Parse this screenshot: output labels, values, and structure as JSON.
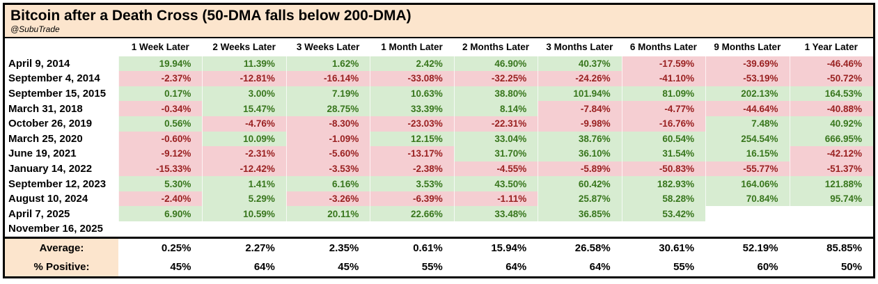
{
  "header": {
    "title": "Bitcoin after a Death Cross (50-DMA falls below 200-DMA)",
    "subtitle": "@SubuTrade"
  },
  "colors": {
    "positive_bg": "#d7ecd1",
    "positive_text": "#38761d",
    "negative_bg": "#f5ced2",
    "negative_text": "#992121",
    "header_bg": "#fce5cd",
    "border": "#000000"
  },
  "chart_data": {
    "type": "table",
    "title": "Bitcoin after a Death Cross (50-DMA falls below 200-DMA)",
    "subtitle": "@SubuTrade",
    "columns": [
      "1 Week Later",
      "2 Weeks Later",
      "3 Weeks Later",
      "1 Month Later",
      "2 Months Later",
      "3 Months Later",
      "6 Months Later",
      "9 Months Later",
      "1 Year Later"
    ],
    "rows": [
      {
        "date": "April 9, 2014",
        "values": [
          "19.94%",
          "11.39%",
          "1.62%",
          "2.42%",
          "46.90%",
          "40.37%",
          "-17.59%",
          "-39.69%",
          "-46.46%"
        ]
      },
      {
        "date": "September 4, 2014",
        "values": [
          "-2.37%",
          "-12.81%",
          "-16.14%",
          "-33.08%",
          "-32.25%",
          "-24.26%",
          "-41.10%",
          "-53.19%",
          "-50.72%"
        ]
      },
      {
        "date": "September 15, 2015",
        "values": [
          "0.17%",
          "3.00%",
          "7.19%",
          "10.63%",
          "38.80%",
          "101.94%",
          "81.09%",
          "202.13%",
          "164.53%"
        ]
      },
      {
        "date": "March 31, 2018",
        "values": [
          "-0.34%",
          "15.47%",
          "28.75%",
          "33.39%",
          "8.14%",
          "-7.84%",
          "-4.77%",
          "-44.64%",
          "-40.88%"
        ]
      },
      {
        "date": "October 26, 2019",
        "values": [
          "0.56%",
          "-4.76%",
          "-8.30%",
          "-23.03%",
          "-22.31%",
          "-9.98%",
          "-16.76%",
          "7.48%",
          "40.92%"
        ]
      },
      {
        "date": "March 25, 2020",
        "values": [
          "-0.60%",
          "10.09%",
          "-1.09%",
          "12.15%",
          "33.04%",
          "38.76%",
          "60.54%",
          "254.54%",
          "666.95%"
        ]
      },
      {
        "date": "June 19, 2021",
        "values": [
          "-9.12%",
          "-2.31%",
          "-5.60%",
          "-13.17%",
          "31.70%",
          "36.10%",
          "31.54%",
          "16.15%",
          "-42.12%"
        ]
      },
      {
        "date": "January 14, 2022",
        "values": [
          "-15.33%",
          "-12.42%",
          "-3.53%",
          "-2.38%",
          "-4.55%",
          "-5.89%",
          "-50.83%",
          "-55.77%",
          "-51.37%"
        ]
      },
      {
        "date": "September 12, 2023",
        "values": [
          "5.30%",
          "1.41%",
          "6.16%",
          "3.53%",
          "43.50%",
          "60.42%",
          "182.93%",
          "164.06%",
          "121.88%"
        ]
      },
      {
        "date": "August 10, 2024",
        "values": [
          "-2.40%",
          "5.29%",
          "-3.26%",
          "-6.39%",
          "-1.11%",
          "25.87%",
          "58.28%",
          "70.84%",
          "95.74%"
        ]
      },
      {
        "date": "April 7, 2025",
        "values": [
          "6.90%",
          "10.59%",
          "20.11%",
          "22.66%",
          "33.48%",
          "36.85%",
          "53.42%",
          "",
          ""
        ]
      },
      {
        "date": "November 16, 2025",
        "values": [
          "",
          "",
          "",
          "",
          "",
          "",
          "",
          "",
          ""
        ]
      }
    ],
    "summary": {
      "average_label": "Average:",
      "average": [
        "0.25%",
        "2.27%",
        "2.35%",
        "0.61%",
        "15.94%",
        "26.58%",
        "30.61%",
        "52.19%",
        "85.85%"
      ],
      "pct_positive_label": "% Positive:",
      "pct_positive": [
        "45%",
        "64%",
        "45%",
        "55%",
        "64%",
        "64%",
        "55%",
        "60%",
        "50%"
      ]
    }
  }
}
